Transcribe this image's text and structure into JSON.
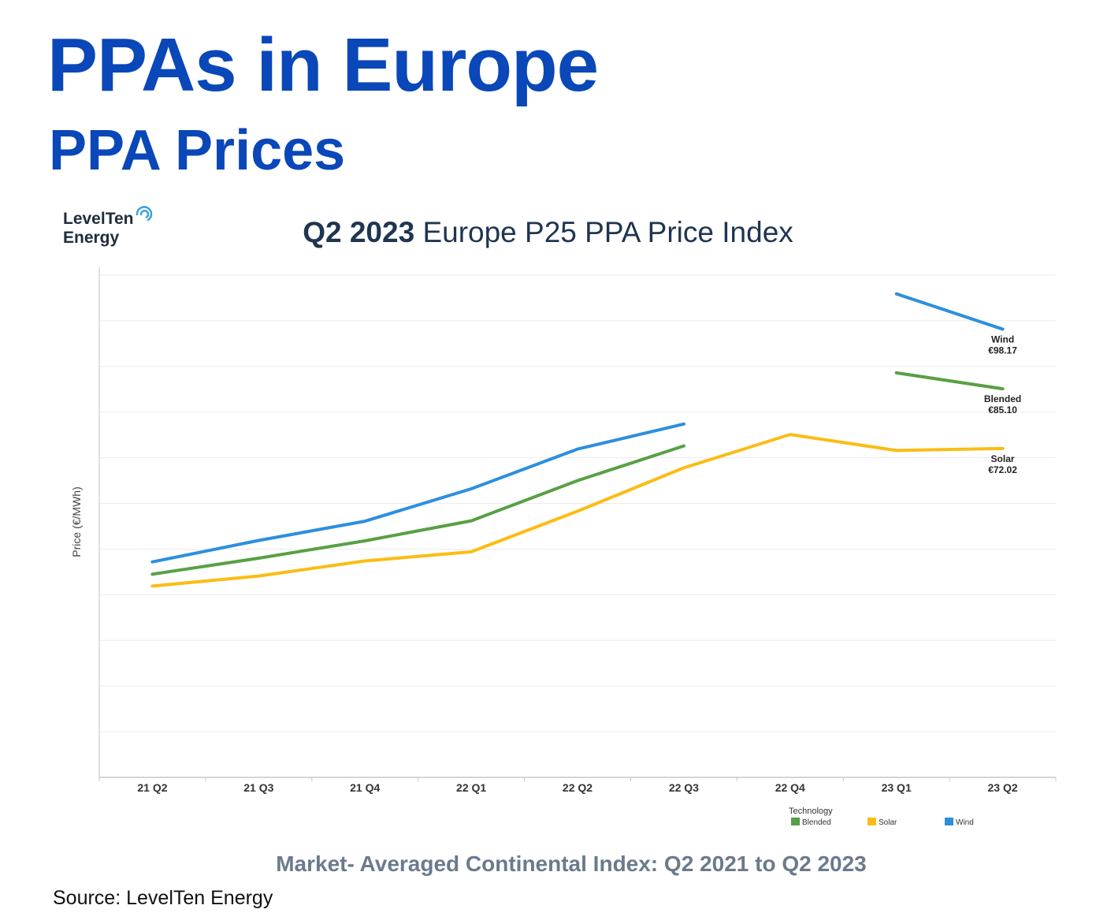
{
  "header": {
    "title": "PPAs in Europe",
    "subtitle": "PPA Prices"
  },
  "logo": {
    "line1": "LevelTen",
    "line2": "Energy",
    "icon": "swirl-icon"
  },
  "chart_title": {
    "bold": "Q2 2023",
    "rest": " Europe P25 PPA Price Index"
  },
  "caption": "Market- Averaged Continental Index: Q2 2021 to Q2 2023",
  "source": "Source: LevelTen Energy",
  "chart_data": {
    "type": "line",
    "title": "Q2 2023 Europe P25 PPA Price Index",
    "xlabel": "",
    "ylabel": "Price (€/MWh)",
    "ylim": [
      0,
      110
    ],
    "grid": true,
    "categories": [
      "21 Q2",
      "21 Q3",
      "21 Q4",
      "22 Q1",
      "22 Q2",
      "22 Q3",
      "22 Q4",
      "23 Q1",
      "23 Q2"
    ],
    "legend": {
      "title": "Technology",
      "placement": "bottom-right",
      "entries": [
        "Blended",
        "Solar",
        "Wind"
      ]
    },
    "series": [
      {
        "name": "Blended",
        "color": "#58a044",
        "values": [
          44.5,
          48.0,
          51.8,
          56.2,
          65.0,
          72.6,
          null,
          88.6,
          85.1
        ],
        "end_label": {
          "name": "Blended",
          "value": "€85.10"
        }
      },
      {
        "name": "Solar",
        "color": "#fbbc14",
        "values": [
          41.9,
          44.1,
          47.4,
          49.4,
          58.3,
          67.8,
          75.1,
          71.6,
          72.02
        ],
        "end_label": {
          "name": "Solar",
          "value": "€72.02"
        }
      },
      {
        "name": "Wind",
        "color": "#2d8fde",
        "values": [
          47.2,
          51.9,
          56.1,
          63.2,
          71.9,
          77.4,
          null,
          105.9,
          98.17
        ],
        "end_label": {
          "name": "Wind",
          "value": "€98.17"
        }
      }
    ]
  }
}
